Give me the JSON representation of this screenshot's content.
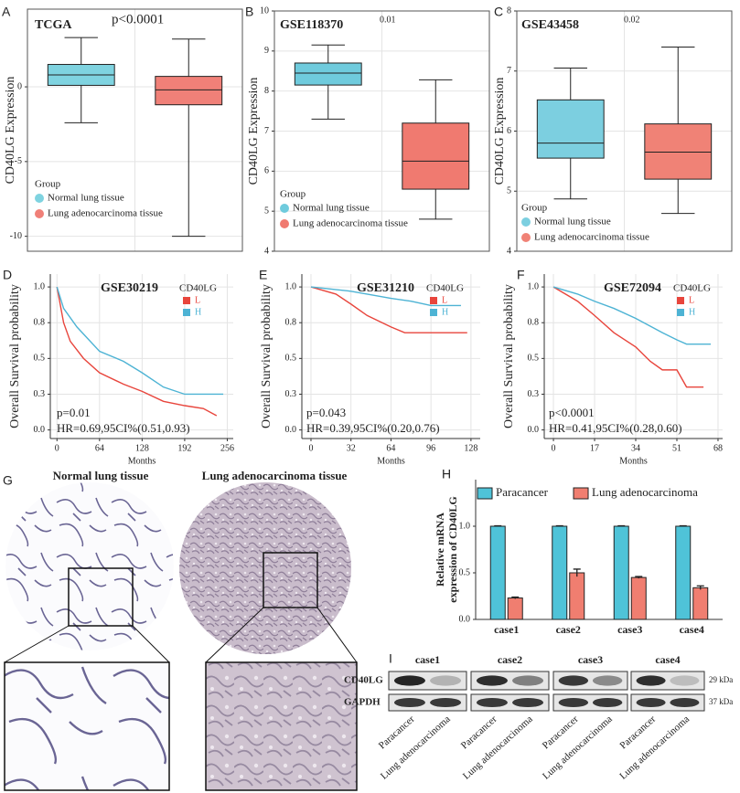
{
  "chart_data": [
    {
      "type": "box",
      "panel": "A",
      "title": "TCGA",
      "annotations": [
        "p<0.0001"
      ],
      "y_label": "CD40LG Expression",
      "legend_title": "Group",
      "ylim": [
        -11,
        5.2
      ],
      "yticks": [
        -10,
        -5,
        0
      ],
      "grid": true,
      "series": [
        {
          "name": "Normal lung tissue",
          "color": "#7fd3e0",
          "whisker_low": -2.4,
          "q1": 0.1,
          "median": 0.8,
          "q3": 1.5,
          "whisker_high": 3.3
        },
        {
          "name": "Lung adenocarcinoma tissue",
          "color": "#f08078",
          "whisker_low": -10,
          "q1": -1.2,
          "median": -0.2,
          "q3": 0.7,
          "whisker_high": 3.2
        }
      ]
    },
    {
      "type": "box",
      "panel": "B",
      "title": "GSE118370",
      "annotations": [
        "0.01"
      ],
      "y_label": "CD40LG Expression",
      "legend_title": "Group",
      "ylim": [
        4,
        10
      ],
      "yticks": [
        4,
        5,
        6,
        7,
        8,
        9,
        10
      ],
      "grid": true,
      "series": [
        {
          "name": "Normal lung tissue",
          "color": "#6fcbdd",
          "whisker_low": 7.3,
          "q1": 8.15,
          "median": 8.45,
          "q3": 8.7,
          "whisker_high": 9.15
        },
        {
          "name": "Lung adenocarcinoma tissue",
          "color": "#f07a70",
          "whisker_low": 4.8,
          "q1": 5.55,
          "median": 6.25,
          "q3": 7.2,
          "whisker_high": 8.28
        }
      ]
    },
    {
      "type": "box",
      "panel": "C",
      "title": "GSE43458",
      "annotations": [
        "0.02"
      ],
      "y_label": "CD40LG Expression",
      "legend_title": "Group",
      "ylim": [
        4,
        8
      ],
      "yticks": [
        4,
        5,
        6,
        7,
        8
      ],
      "grid": true,
      "series": [
        {
          "name": "Normal lung tissue",
          "color": "#7ccfe0",
          "whisker_low": 4.87,
          "q1": 5.55,
          "median": 5.8,
          "q3": 6.52,
          "whisker_high": 7.05
        },
        {
          "name": "Lung adenocarcinoma tissue",
          "color": "#f08276",
          "whisker_low": 4.63,
          "q1": 5.2,
          "median": 5.65,
          "q3": 6.12,
          "whisker_high": 7.4
        }
      ]
    },
    {
      "type": "line",
      "panel": "D",
      "title": "GSE30219",
      "legend_title": "CD40LG",
      "x_label": "Months",
      "y_label": "Overall Survival probability",
      "annotations": [
        "p=0.01",
        "HR=0.69,95CI%(0.51,0.93)"
      ],
      "grid": true,
      "xlim": [
        -10,
        265
      ],
      "xticks": [
        0,
        64,
        128,
        192,
        256
      ],
      "ylim": [
        -0.06,
        1.09
      ],
      "yticks": [
        {
          "value": 0,
          "label": "0.0"
        },
        {
          "value": 0.25,
          "label": "0.3"
        },
        0.5,
        {
          "value": 0.75,
          "label": "0.8"
        },
        {
          "value": 1,
          "label": "1.0"
        }
      ],
      "series": [
        {
          "name": "L",
          "color": "#e8453c",
          "x": [
            0,
            10,
            20,
            40,
            64,
            100,
            128,
            160,
            192,
            220,
            240
          ],
          "values": [
            1,
            0.75,
            0.62,
            0.5,
            0.4,
            0.32,
            0.27,
            0.2,
            0.17,
            0.15,
            0.1
          ]
        },
        {
          "name": "H",
          "color": "#4db3d4",
          "x": [
            0,
            10,
            30,
            64,
            100,
            128,
            160,
            192,
            250
          ],
          "values": [
            1,
            0.85,
            0.72,
            0.55,
            0.48,
            0.4,
            0.3,
            0.25,
            0.25
          ]
        }
      ]
    },
    {
      "type": "line",
      "panel": "E",
      "title": "GSE31210",
      "legend_title": "CD40LG",
      "x_label": "Months",
      "y_label": "Overall Survival probability",
      "annotations": [
        "p=0.043",
        "HR=0.39,95CI%(0.20,0.76)"
      ],
      "grid": true,
      "xlim": [
        -7.3,
        135.4
      ],
      "xticks": [
        0,
        32,
        64,
        96,
        128
      ],
      "ylim": [
        -0.06,
        1.09
      ],
      "yticks": [
        {
          "value": 0,
          "label": "0.0"
        },
        {
          "value": 0.25,
          "label": "0.3"
        },
        0.5,
        {
          "value": 0.75,
          "label": "0.8"
        },
        {
          "value": 1,
          "label": "1.0"
        }
      ],
      "series": [
        {
          "name": "L",
          "color": "#e8453c",
          "x": [
            0,
            20,
            32,
            45,
            64,
            75,
            125
          ],
          "values": [
            1,
            0.95,
            0.88,
            0.8,
            0.72,
            0.68,
            0.68
          ]
        },
        {
          "name": "H",
          "color": "#4db3d4",
          "x": [
            0,
            32,
            64,
            80,
            96,
            120
          ],
          "values": [
            1,
            0.97,
            0.92,
            0.9,
            0.87,
            0.87
          ]
        }
      ]
    },
    {
      "type": "line",
      "panel": "F",
      "title": "GSE72094",
      "legend_title": "CD40LG",
      "x_label": "Months",
      "y_label": "Overall Survival probability",
      "annotations": [
        "p<0.0001",
        "HR=0.41,95CI%(0.28,0.60)"
      ],
      "grid": true,
      "xlim": [
        -3.8,
        69.9
      ],
      "xticks": [
        0,
        17,
        34,
        51,
        68
      ],
      "ylim": [
        -0.06,
        1.09
      ],
      "yticks": [
        {
          "value": 0,
          "label": "0.0"
        },
        {
          "value": 0.25,
          "label": "0.3"
        },
        0.5,
        {
          "value": 0.75,
          "label": "0.8"
        },
        {
          "value": 1,
          "label": "1.0"
        }
      ],
      "series": [
        {
          "name": "L",
          "color": "#e8453c",
          "x": [
            0,
            10,
            17,
            25,
            34,
            40,
            45,
            51,
            55,
            62
          ],
          "values": [
            1,
            0.9,
            0.8,
            0.68,
            0.58,
            0.48,
            0.42,
            0.42,
            0.3,
            0.3
          ]
        },
        {
          "name": "H",
          "color": "#4db3d4",
          "x": [
            0,
            10,
            17,
            25,
            34,
            45,
            51,
            55,
            65
          ],
          "values": [
            1,
            0.95,
            0.9,
            0.85,
            0.78,
            0.68,
            0.63,
            0.6,
            0.6
          ]
        }
      ]
    },
    {
      "type": "bar",
      "panel": "H",
      "y_label": [
        "Relative mRNA",
        "expression of CD40LG"
      ],
      "categories": [
        "case1",
        "case2",
        "case3",
        "case4"
      ],
      "ylim": [
        0,
        1.5
      ],
      "yticks": [
        {
          "value": 0,
          "label": "0.0"
        },
        0.5,
        {
          "value": 1,
          "label": "1.0"
        }
      ],
      "series": [
        {
          "name": "Paracancer",
          "color": "#4fc3d8",
          "values": [
            1,
            1,
            1,
            1
          ],
          "errors": [
            0.005,
            0.005,
            0.005,
            0.005
          ]
        },
        {
          "name": "Lung adenocarcinoma",
          "color": "#f07e70",
          "values": [
            0.23,
            0.5,
            0.45,
            0.34
          ],
          "errors": [
            0.01,
            0.04,
            0.01,
            0.02
          ]
        }
      ]
    }
  ],
  "tissue": {
    "panel": "G",
    "titles": [
      "Normal lung tissue",
      "Lung adenocarcinoma tissue"
    ]
  },
  "blot": {
    "panel": "I",
    "cases": [
      "case1",
      "case2",
      "case3",
      "case4"
    ],
    "rows": [
      {
        "label": "CD40LG",
        "size": "29 kDa"
      },
      {
        "label": "GAPDH",
        "size": "37 kDa"
      }
    ],
    "lanes": [
      "Paracancer",
      "Lung adenocarcinoma"
    ]
  }
}
